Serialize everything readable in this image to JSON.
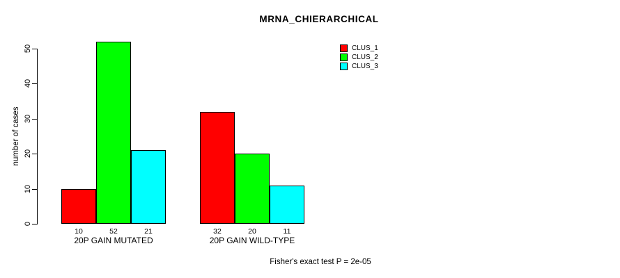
{
  "chart_data": {
    "type": "bar",
    "title": "MRNA_CHIERARCHICAL",
    "ylabel": "number of cases",
    "xlabel": "",
    "ylim": [
      0,
      50
    ],
    "yticks": [
      0,
      10,
      20,
      30,
      40,
      50
    ],
    "categories": [
      "20P GAIN MUTATED",
      "20P GAIN WILD-TYPE"
    ],
    "series": [
      {
        "name": "CLUS_1",
        "color": "#FF0000",
        "values": [
          10,
          32
        ]
      },
      {
        "name": "CLUS_2",
        "color": "#00FF00",
        "values": [
          52,
          20
        ]
      },
      {
        "name": "CLUS_3",
        "color": "#00FFFF",
        "values": [
          21,
          11
        ]
      }
    ],
    "bar_value_labels": [
      [
        "10",
        "52",
        "21"
      ],
      [
        "32",
        "20",
        "11"
      ]
    ],
    "grid": false,
    "legend_position": "top-right",
    "annotation": "Fisher's exact test P = 2e-05",
    "bar_border_color": "#000000",
    "background_color": "#FFFFFF",
    "text_color": "#000000"
  }
}
